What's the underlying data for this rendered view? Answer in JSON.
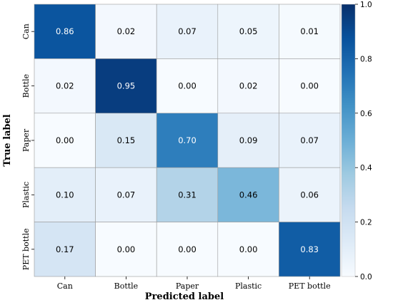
{
  "chart_data": {
    "type": "heatmap",
    "title": "",
    "xlabel": "Predicted label",
    "ylabel": "True label",
    "x_categories": [
      "Can",
      "Bottle",
      "Paper",
      "Plastic",
      "PET bottle"
    ],
    "y_categories": [
      "Can",
      "Bottle",
      "Paper",
      "Plastic",
      "PET bottle"
    ],
    "values": [
      [
        0.86,
        0.02,
        0.07,
        0.05,
        0.01
      ],
      [
        0.02,
        0.95,
        0.0,
        0.02,
        0.0
      ],
      [
        0.0,
        0.15,
        0.7,
        0.09,
        0.07
      ],
      [
        0.1,
        0.07,
        0.31,
        0.46,
        0.06
      ],
      [
        0.17,
        0.0,
        0.0,
        0.0,
        0.83
      ]
    ],
    "value_format": "0.00",
    "colorbar": {
      "range": [
        0.0,
        1.0
      ],
      "ticks": [
        "0.0",
        "0.2",
        "0.4",
        "0.6",
        "0.8",
        "1.0"
      ]
    },
    "colormap": "Blues",
    "colors": {
      "low": "#f7fbff",
      "high": "#08306b",
      "text_light": "#ffffff",
      "text_dark": "#000000",
      "gridline": "#999999"
    }
  }
}
